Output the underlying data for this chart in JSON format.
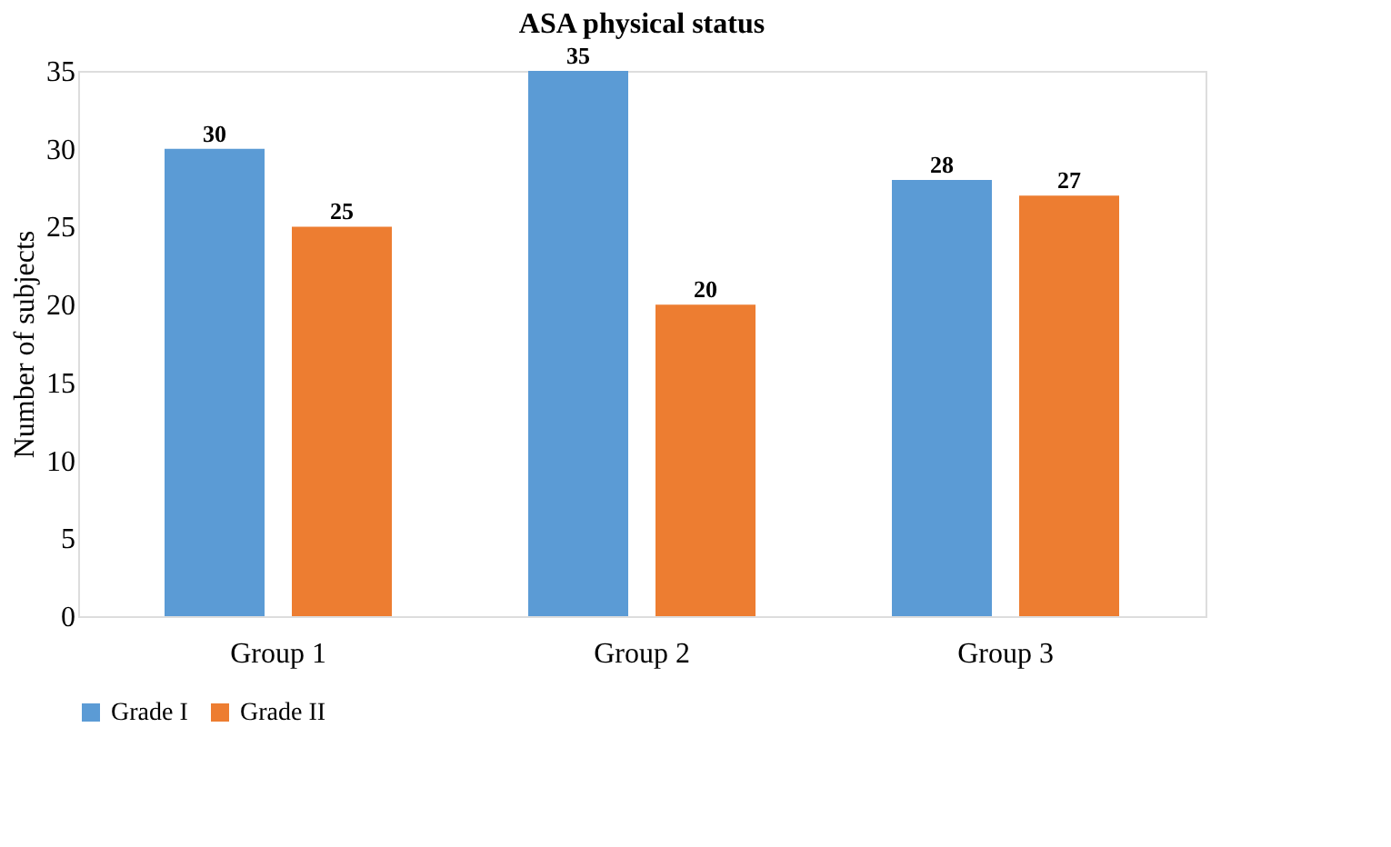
{
  "chart_data": {
    "type": "bar",
    "title": "ASA physical status",
    "ylabel": "Number of subjects",
    "categories": [
      "Group 1",
      "Group 2",
      "Group 3"
    ],
    "series": [
      {
        "name": "Grade I",
        "color": "#5b9bd5",
        "values": [
          30,
          35,
          28
        ]
      },
      {
        "name": "Grade II",
        "color": "#ed7d31",
        "values": [
          25,
          20,
          27
        ]
      }
    ],
    "ylim": [
      0,
      35
    ],
    "yticks": [
      0,
      5,
      10,
      15,
      20,
      25,
      30,
      35
    ],
    "grid": false,
    "legend": "bottom",
    "data_labels": true
  }
}
